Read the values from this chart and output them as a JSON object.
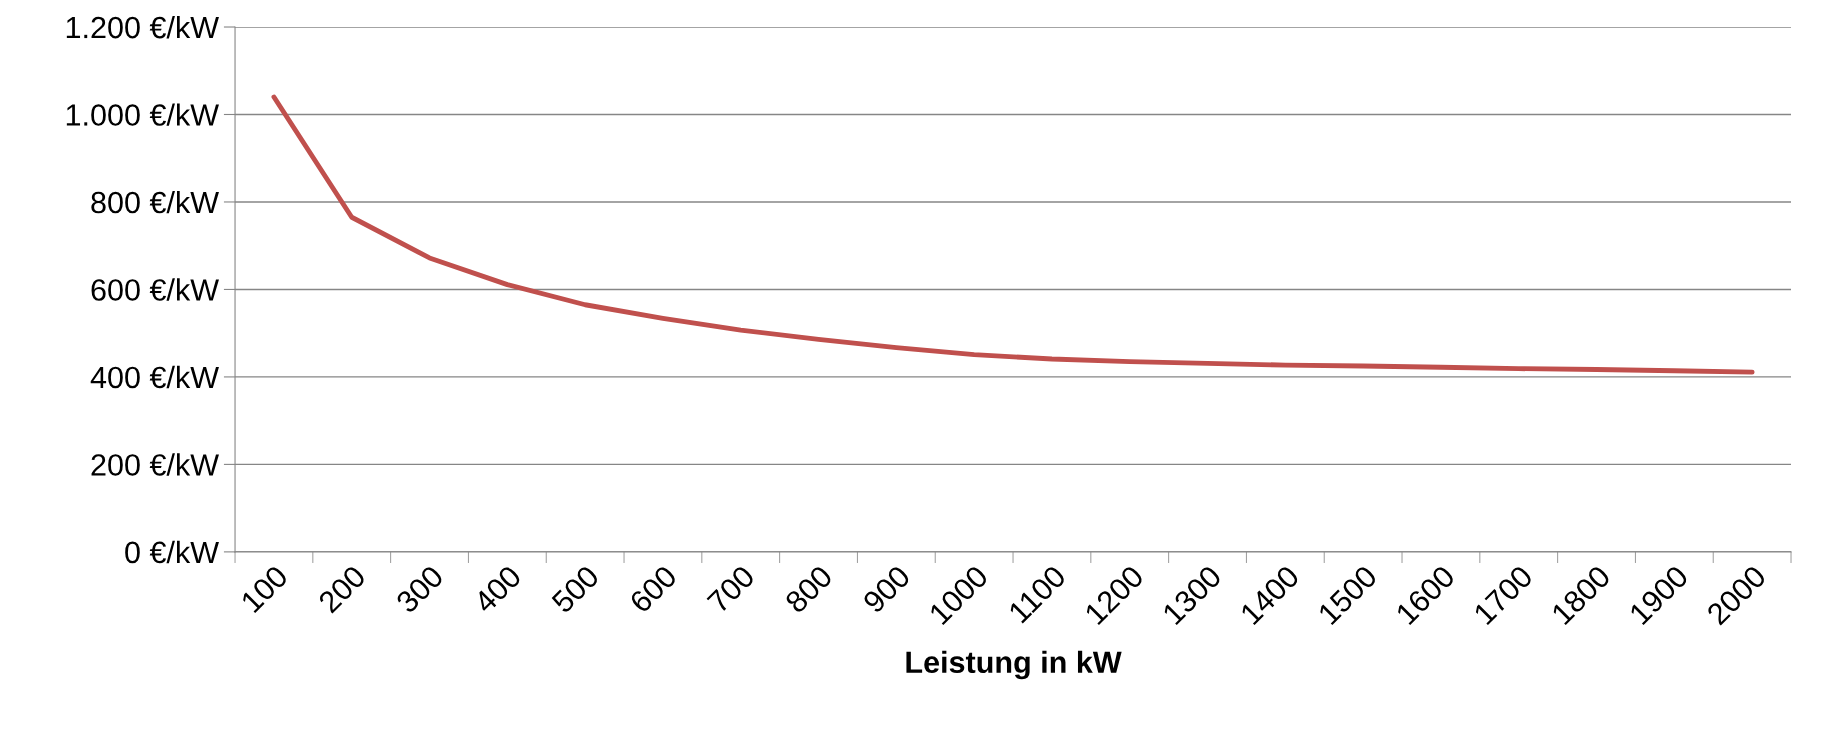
{
  "chart_data": {
    "type": "line",
    "xlabel": "Leistung in kW",
    "categories": [
      "100",
      "200",
      "300",
      "400",
      "500",
      "600",
      "700",
      "800",
      "900",
      "1000",
      "1100",
      "1200",
      "1300",
      "1400",
      "1500",
      "1600",
      "1700",
      "1800",
      "1900",
      "2000"
    ],
    "series": [
      {
        "color": "#c0504d",
        "values": [
          1040,
          765,
          672,
          611,
          565,
          534,
          507,
          486,
          467,
          451,
          441,
          435,
          431,
          427,
          425,
          422,
          419,
          417,
          414,
          411
        ]
      }
    ],
    "ylim": [
      0,
      1200
    ],
    "yticks": [
      {
        "value": 0,
        "label": "0 €/kW"
      },
      {
        "value": 200,
        "label": "200 €/kW"
      },
      {
        "value": 400,
        "label": "400 €/kW"
      },
      {
        "value": 600,
        "label": "600 €/kW"
      },
      {
        "value": 800,
        "label": "800 €/kW"
      },
      {
        "value": 1000,
        "label": "1.000 €/kW"
      },
      {
        "value": 1200,
        "label": "1.200 €/kW"
      }
    ],
    "grid": "y",
    "marker": "none",
    "line_style": "solid"
  }
}
